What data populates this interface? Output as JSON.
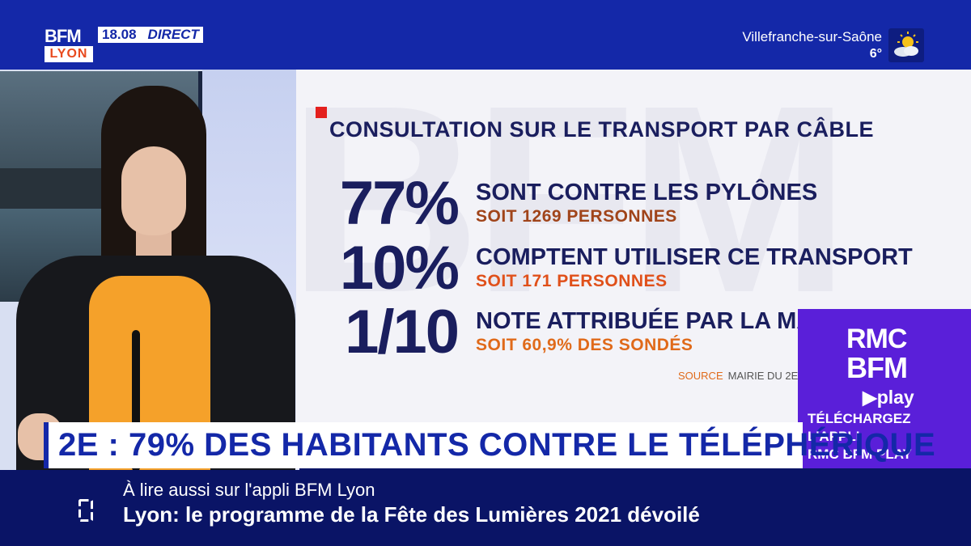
{
  "channel": {
    "brand": "BFM",
    "city": "LYON",
    "time": "18.08",
    "status": "DIRECT"
  },
  "weather": {
    "city": "Villefranche-sur-Saône",
    "temperature": "6°",
    "icon": "sun-cloud-icon"
  },
  "infographic": {
    "title": "CONSULTATION SUR LE TRANSPORT PAR CÂBLE",
    "stats": [
      {
        "value": "77%",
        "label": "SONT CONTRE LES PYLÔNES",
        "detail": "SOIT 1269 PERSONNES"
      },
      {
        "value": "10%",
        "label": "COMPTENT UTILISER CE TRANSPORT",
        "detail": "SOIT 171 PERSONNES"
      },
      {
        "value": "1/10",
        "label": "NOTE ATTRIBUÉE PAR LA MA",
        "detail": "SOIT 60,9% DES SONDÉS"
      }
    ],
    "source_label": "SOURCE",
    "source_value": "MAIRIE DU 2E"
  },
  "promo": {
    "line1": "RMC",
    "line2": "BFM",
    "line3": "▶play",
    "cta1": "TÉLÉCHARGEZ",
    "cta2": "L'APPLI",
    "cta3": "RMC BFM PLAY"
  },
  "headline": "2E : 79% DES HABITANTS CONTRE LE TÉLÉPHÉRIQUE",
  "ticker": {
    "kicker": "À lire aussi sur l'appli BFM Lyon",
    "title": "Lyon: le programme de la Fête des Lumières 2021 dévoilé"
  },
  "colors": {
    "brand_blue": "#1428a8",
    "navy": "#1a1e5e",
    "orange": "#e06a1a",
    "red": "#e4201e",
    "promo_purple": "#5a1fd9"
  }
}
